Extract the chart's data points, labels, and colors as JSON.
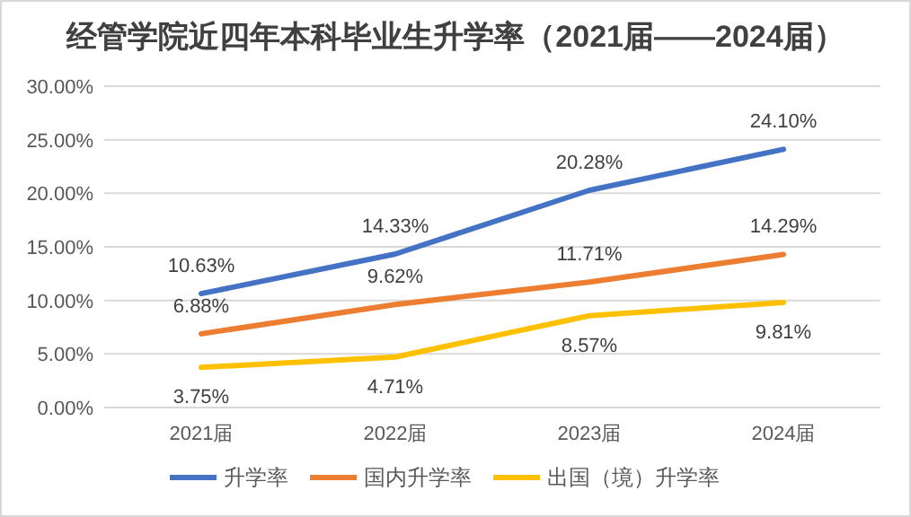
{
  "chart_data": {
    "type": "line",
    "title": "经管学院近四年本科毕业生升学率（2021届——2024届）",
    "categories": [
      "2021届",
      "2022届",
      "2023届",
      "2024届"
    ],
    "series": [
      {
        "name": "升学率",
        "color": "#4472c4",
        "values": [
          10.63,
          14.33,
          20.28,
          24.1
        ],
        "value_labels": [
          "10.63%",
          "14.33%",
          "20.28%",
          "24.10%"
        ]
      },
      {
        "name": "国内升学率",
        "color": "#ed7d31",
        "values": [
          6.88,
          9.62,
          11.71,
          14.29
        ],
        "value_labels": [
          "6.88%",
          "9.62%",
          "11.71%",
          "14.29%"
        ]
      },
      {
        "name": "出国（境）升学率",
        "color": "#ffc000",
        "values": [
          3.75,
          4.71,
          8.57,
          9.81
        ],
        "value_labels": [
          "3.75%",
          "4.71%",
          "8.57%",
          "9.81%"
        ]
      }
    ],
    "ylim": [
      0,
      30
    ],
    "yticks": [
      {
        "value": 0,
        "label": "0.00%"
      },
      {
        "value": 5,
        "label": "5.00%"
      },
      {
        "value": 10,
        "label": "10.00%"
      },
      {
        "value": 15,
        "label": "15.00%"
      },
      {
        "value": 20,
        "label": "20.00%"
      },
      {
        "value": 25,
        "label": "25.00%"
      },
      {
        "value": 30,
        "label": "30.00%"
      }
    ],
    "grid": "y",
    "legend": "bottom",
    "marker": "none",
    "line_style": "solid"
  }
}
